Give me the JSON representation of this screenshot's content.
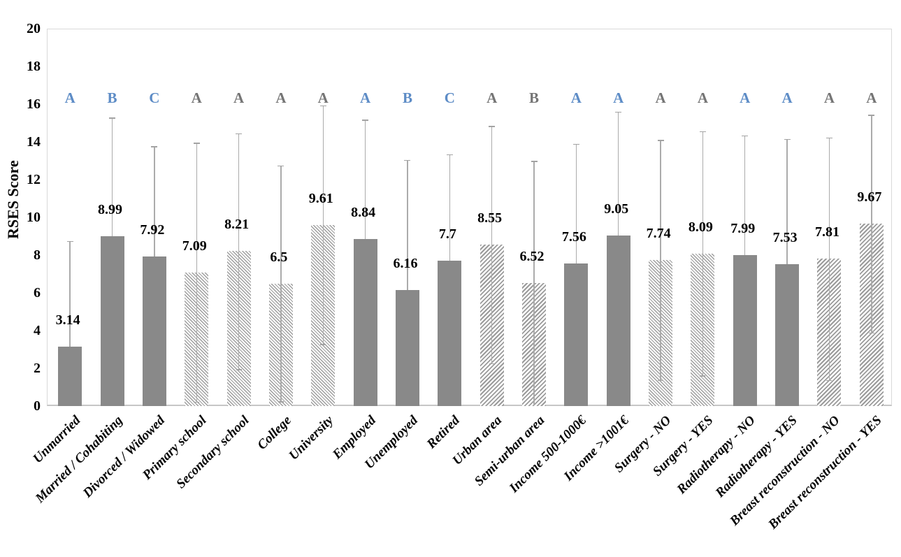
{
  "chart_data": {
    "type": "bar",
    "title": "",
    "xlabel": "",
    "ylabel": "RSES Score",
    "ylim": [
      0,
      20
    ],
    "yticks": [
      0,
      2,
      4,
      6,
      8,
      10,
      12,
      14,
      16,
      18,
      20
    ],
    "grid": false,
    "legend": "none",
    "letter_annotation_row_value": 16.3,
    "bars": [
      {
        "label": "Unmarried",
        "value": 3.14,
        "err_top": 8.75,
        "err_low": 0,
        "letter": "A",
        "letter_color": "blue",
        "pattern": "solid"
      },
      {
        "label": "Married / Cohabiting",
        "value": 8.99,
        "err_top": 15.28,
        "err_low": 2.7,
        "letter": "B",
        "letter_color": "blue",
        "pattern": "solid"
      },
      {
        "label": "Divorced / Widowed",
        "value": 7.92,
        "err_top": 13.77,
        "err_low": 2.07,
        "letter": "C",
        "letter_color": "blue",
        "pattern": "solid"
      },
      {
        "label": "Primary school",
        "value": 7.09,
        "err_top": 13.95,
        "err_low": 0.23,
        "letter": "A",
        "letter_color": "gray",
        "pattern": "hatch-down"
      },
      {
        "label": "Secondary school",
        "value": 8.21,
        "err_top": 14.46,
        "err_low": 1.96,
        "letter": "A",
        "letter_color": "gray",
        "pattern": "hatch-down"
      },
      {
        "label": "College",
        "value": 6.5,
        "err_top": 12.75,
        "err_low": 0.25,
        "letter": "A",
        "letter_color": "gray",
        "pattern": "hatch-down"
      },
      {
        "label": "University",
        "value": 9.61,
        "err_top": 15.93,
        "err_low": 3.29,
        "letter": "A",
        "letter_color": "gray",
        "pattern": "hatch-down"
      },
      {
        "label": "Employed",
        "value": 8.84,
        "err_top": 15.18,
        "err_low": 2.5,
        "letter": "A",
        "letter_color": "blue",
        "pattern": "solid"
      },
      {
        "label": "Unemployed",
        "value": 6.16,
        "err_top": 13.05,
        "err_low": 0,
        "letter": "B",
        "letter_color": "blue",
        "pattern": "solid"
      },
      {
        "label": "Retired",
        "value": 7.7,
        "err_top": 13.35,
        "err_low": 2.05,
        "letter": "C",
        "letter_color": "blue",
        "pattern": "solid"
      },
      {
        "label": "Urban area",
        "value": 8.55,
        "err_top": 14.84,
        "err_low": 2.26,
        "letter": "A",
        "letter_color": "gray",
        "pattern": "hatch-up"
      },
      {
        "label": "Semi-urban area",
        "value": 6.52,
        "err_top": 12.99,
        "err_low": 0.05,
        "letter": "B",
        "letter_color": "gray",
        "pattern": "hatch-up"
      },
      {
        "label": "Income 500-1000€",
        "value": 7.56,
        "err_top": 13.9,
        "err_low": 1.22,
        "letter": "A",
        "letter_color": "blue",
        "pattern": "solid"
      },
      {
        "label": "Income >1001€",
        "value": 9.05,
        "err_top": 15.61,
        "err_low": 2.49,
        "letter": "A",
        "letter_color": "blue",
        "pattern": "solid"
      },
      {
        "label": "Surgery - NO",
        "value": 7.74,
        "err_top": 14.1,
        "err_low": 1.38,
        "letter": "A",
        "letter_color": "gray",
        "pattern": "hatch-down"
      },
      {
        "label": "Surgery - YES",
        "value": 8.09,
        "err_top": 14.56,
        "err_low": 1.62,
        "letter": "A",
        "letter_color": "gray",
        "pattern": "hatch-down"
      },
      {
        "label": "Radiotherapy - NO",
        "value": 7.99,
        "err_top": 14.35,
        "err_low": 1.63,
        "letter": "A",
        "letter_color": "blue",
        "pattern": "solid"
      },
      {
        "label": "Radiotherapy - YES",
        "value": 7.53,
        "err_top": 14.16,
        "err_low": 0.9,
        "letter": "A",
        "letter_color": "blue",
        "pattern": "solid"
      },
      {
        "label": "Breast reconstruction - NO",
        "value": 7.81,
        "err_top": 14.24,
        "err_low": 1.38,
        "letter": "A",
        "letter_color": "gray",
        "pattern": "hatch-up"
      },
      {
        "label": "Breast reconstruction - YES",
        "value": 9.67,
        "err_top": 15.44,
        "err_low": 3.9,
        "letter": "A",
        "letter_color": "gray",
        "pattern": "hatch-up"
      }
    ],
    "colors": {
      "solid_bar": "#898989",
      "hatch_stripe": "#9e9e9e",
      "error_bar": "#ababab",
      "letter_blue": "#5d8cc6",
      "letter_gray": "#757575",
      "frame": "#d9d9d9",
      "axis_line": "#c6c6c6",
      "text": "#000000"
    }
  }
}
